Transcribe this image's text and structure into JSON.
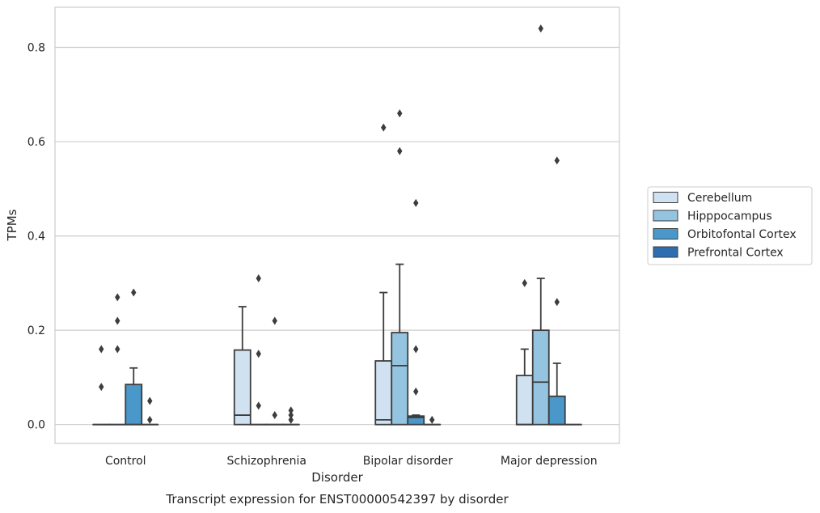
{
  "chart_data": {
    "type": "box",
    "title": "Transcript expression for ENST00000542397 by disorder",
    "xlabel": "Disorder",
    "ylabel": "TPMs",
    "ylim": [
      -0.04,
      0.885
    ],
    "yticks": [
      "0.0",
      "0.2",
      "0.4",
      "0.6",
      "0.8"
    ],
    "grid": "horizontal",
    "legend_position": "right",
    "categories": [
      "Control",
      "Schizophrenia",
      "Bipolar disorder",
      "Major depression"
    ],
    "series": [
      {
        "name": "Cerebellum",
        "color": "#d0e1f2",
        "boxes": [
          {
            "q1": 0,
            "median": 0,
            "q3": 0,
            "whisker_low": 0,
            "whisker_high": 0,
            "outliers": [
              0.08,
              0.16
            ]
          },
          {
            "q1": 0,
            "median": 0.02,
            "q3": 0.158,
            "whisker_low": 0,
            "whisker_high": 0.25,
            "outliers": []
          },
          {
            "q1": 0,
            "median": 0.01,
            "q3": 0.135,
            "whisker_low": 0,
            "whisker_high": 0.28,
            "outliers": [
              0.63
            ]
          },
          {
            "q1": 0,
            "median": 0,
            "q3": 0.104,
            "whisker_low": 0,
            "whisker_high": 0.16,
            "outliers": [
              0.3
            ]
          }
        ]
      },
      {
        "name": "Hipppocampus",
        "color": "#94c4df",
        "boxes": [
          {
            "q1": 0,
            "median": 0,
            "q3": 0,
            "whisker_low": 0,
            "whisker_high": 0,
            "outliers": [
              0.27,
              0.22,
              0.16
            ]
          },
          {
            "q1": 0,
            "median": 0,
            "q3": 0,
            "whisker_low": 0,
            "whisker_high": 0,
            "outliers": [
              0.31,
              0.15,
              0.04
            ]
          },
          {
            "q1": 0,
            "median": 0.125,
            "q3": 0.195,
            "whisker_low": 0,
            "whisker_high": 0.34,
            "outliers": [
              0.66,
              0.58
            ]
          },
          {
            "q1": 0,
            "median": 0.09,
            "q3": 0.2,
            "whisker_low": 0,
            "whisker_high": 0.31,
            "outliers": [
              0.84
            ]
          }
        ]
      },
      {
        "name": "Orbitofontal Cortex",
        "color": "#4a98c9",
        "boxes": [
          {
            "q1": 0,
            "median": 0,
            "q3": 0.085,
            "whisker_low": 0,
            "whisker_high": 0.12,
            "outliers": [
              0.28
            ]
          },
          {
            "q1": 0,
            "median": 0,
            "q3": 0,
            "whisker_low": 0,
            "whisker_high": 0,
            "outliers": [
              0.22,
              0.02
            ]
          },
          {
            "q1": 0,
            "median": 0.015,
            "q3": 0.018,
            "whisker_low": 0,
            "whisker_high": 0.02,
            "outliers": [
              0.47,
              0.16,
              0.07
            ]
          },
          {
            "q1": 0,
            "median": 0,
            "q3": 0.06,
            "whisker_low": 0,
            "whisker_high": 0.13,
            "outliers": [
              0.56,
              0.26
            ]
          }
        ]
      },
      {
        "name": "Prefrontal Cortex",
        "color": "#2e6eb0",
        "boxes": [
          {
            "q1": 0,
            "median": 0,
            "q3": 0,
            "whisker_low": 0,
            "whisker_high": 0,
            "outliers": [
              0.05,
              0.01
            ]
          },
          {
            "q1": 0,
            "median": 0,
            "q3": 0,
            "whisker_low": 0,
            "whisker_high": 0,
            "outliers": [
              0.03,
              0.02,
              0.01
            ]
          },
          {
            "q1": 0,
            "median": 0,
            "q3": 0,
            "whisker_low": 0,
            "whisker_high": 0,
            "outliers": [
              0.01
            ]
          },
          {
            "q1": 0,
            "median": 0,
            "q3": 0,
            "whisker_low": 0,
            "whisker_high": 0,
            "outliers": []
          }
        ]
      }
    ]
  }
}
